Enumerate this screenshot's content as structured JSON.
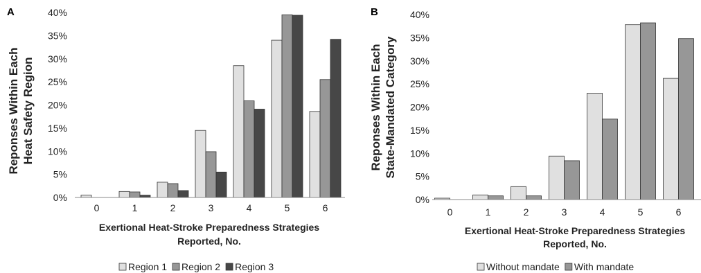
{
  "chart_data": [
    {
      "panel_label": "A",
      "type": "bar",
      "categories": [
        "0",
        "1",
        "2",
        "3",
        "4",
        "5",
        "6"
      ],
      "series": [
        {
          "name": "Region 1",
          "color": "#e0e0e0",
          "values": [
            0.5,
            1.3,
            3.3,
            14.5,
            28.5,
            34.0,
            18.6
          ]
        },
        {
          "name": "Region 2",
          "color": "#979797",
          "values": [
            0.0,
            1.2,
            3.0,
            9.9,
            20.9,
            39.5,
            25.5
          ]
        },
        {
          "name": "Region 3",
          "color": "#474747",
          "values": [
            0.0,
            0.5,
            1.5,
            5.5,
            19.1,
            39.4,
            34.2
          ]
        }
      ],
      "xlabel": [
        "Exertional Heat-Stroke Preparedness Strategies",
        "Reported, No."
      ],
      "ylabel": [
        "Reponses Within Each",
        "Heat Safety Region"
      ],
      "ylim": [
        0,
        40
      ],
      "yticks": [
        "0%",
        "5%",
        "10%",
        "15%",
        "20%",
        "25%",
        "30%",
        "35%",
        "40%"
      ],
      "grid": false,
      "legend": "bottom"
    },
    {
      "panel_label": "B",
      "type": "bar",
      "categories": [
        "0",
        "1",
        "2",
        "3",
        "4",
        "5",
        "6"
      ],
      "series": [
        {
          "name": "Without mandate",
          "color": "#e0e0e0",
          "values": [
            0.3,
            1.0,
            2.8,
            9.4,
            23.0,
            37.8,
            26.2
          ]
        },
        {
          "name": "With mandate",
          "color": "#979797",
          "values": [
            0.0,
            0.8,
            0.8,
            8.4,
            17.4,
            38.2,
            34.8
          ]
        }
      ],
      "xlabel": [
        "Exertional Heat-Stroke Preparedness Strategies",
        "Reported, No."
      ],
      "ylabel": [
        "Reponses Within Each",
        "State-Mandated Category"
      ],
      "ylim": [
        0,
        40
      ],
      "yticks": [
        "0%",
        "5%",
        "10%",
        "15%",
        "20%",
        "25%",
        "30%",
        "35%",
        "40%"
      ],
      "grid": false,
      "legend": "bottom"
    }
  ]
}
